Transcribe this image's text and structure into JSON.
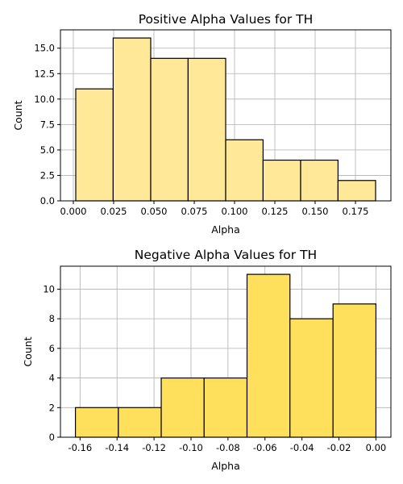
{
  "chart_data": [
    {
      "type": "bar",
      "title": "Positive Alpha Values for TH",
      "xlabel": "Alpha",
      "ylabel": "Count",
      "bin_edges": [
        0.0015,
        0.0247,
        0.048,
        0.0712,
        0.0945,
        0.1177,
        0.141,
        0.1642,
        0.1875
      ],
      "values": [
        11,
        16,
        14,
        14,
        6,
        4,
        4,
        2
      ],
      "xlim": [
        -0.008,
        0.197
      ],
      "ylim": [
        0,
        16.8
      ],
      "xticks": [
        0.0,
        0.025,
        0.05,
        0.075,
        0.1,
        0.125,
        0.15,
        0.175
      ],
      "xtick_labels": [
        "0.000",
        "0.025",
        "0.050",
        "0.075",
        "0.100",
        "0.125",
        "0.150",
        "0.175"
      ],
      "yticks": [
        0,
        2.5,
        5,
        7.5,
        10,
        12.5,
        15
      ],
      "ytick_labels": [
        "0.0",
        "2.5",
        "5.0",
        "7.5",
        "10.0",
        "12.5",
        "15.0"
      ],
      "grid": true,
      "bar_color": "#FFE999",
      "edge_color": "#000000"
    },
    {
      "type": "bar",
      "title": "Negative Alpha Values for TH",
      "xlabel": "Alpha",
      "ylabel": "Count",
      "bin_edges": [
        -0.1625,
        -0.1393,
        -0.1161,
        -0.0929,
        -0.0697,
        -0.0465,
        -0.0232,
        0.0
      ],
      "values": [
        2,
        2,
        4,
        4,
        11,
        8,
        9
      ],
      "xlim": [
        -0.1706,
        0.0081
      ],
      "ylim": [
        0,
        11.55
      ],
      "xticks": [
        -0.16,
        -0.14,
        -0.12,
        -0.1,
        -0.08,
        -0.06,
        -0.04,
        -0.02,
        0.0
      ],
      "xtick_labels": [
        "-0.16",
        "-0.14",
        "-0.12",
        "-0.10",
        "-0.08",
        "-0.06",
        "-0.04",
        "-0.02",
        "0.00"
      ],
      "yticks": [
        0,
        2,
        4,
        6,
        8,
        10
      ],
      "ytick_labels": [
        "0",
        "2",
        "4",
        "6",
        "8",
        "10"
      ],
      "grid": true,
      "bar_color": "#FFE05C",
      "edge_color": "#000000"
    }
  ]
}
